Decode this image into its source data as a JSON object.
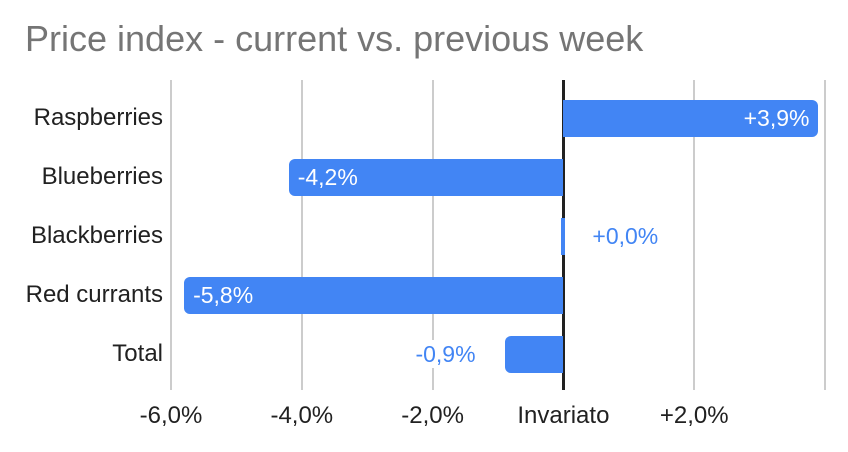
{
  "chart_data": {
    "type": "bar",
    "orientation": "horizontal",
    "title": "Price index - current vs. previous week",
    "categories": [
      "Raspberries",
      "Blueberries",
      "Blackberries",
      "Red currants",
      "Total"
    ],
    "values": [
      3.9,
      -4.2,
      0.0,
      -5.8,
      -0.9
    ],
    "data_labels": [
      "+3,9%",
      "-4,2%",
      "+0,0%",
      "-5,8%",
      "-0,9%"
    ],
    "label_placement": [
      "inside-end",
      "inside-start",
      "outside",
      "inside-start",
      "outside"
    ],
    "x_axis": {
      "range": [
        -6,
        4
      ],
      "ticks": [
        {
          "value": -6,
          "label": "-6,0%"
        },
        {
          "value": -4,
          "label": "-4,0%"
        },
        {
          "value": -2,
          "label": "-2,0%"
        },
        {
          "value": 0,
          "label": "Invariato"
        },
        {
          "value": 2,
          "label": "+2,0%"
        },
        {
          "value": 4,
          "label": ""
        }
      ]
    },
    "legend": "none",
    "grid": true,
    "colors": {
      "bar": "#4285f4",
      "label_inside": "#ffffff",
      "label_outside": "#4285f4",
      "gridline": "#cccccc",
      "zero_line": "#212121",
      "title": "#757575",
      "axis_text": "#212121"
    }
  }
}
